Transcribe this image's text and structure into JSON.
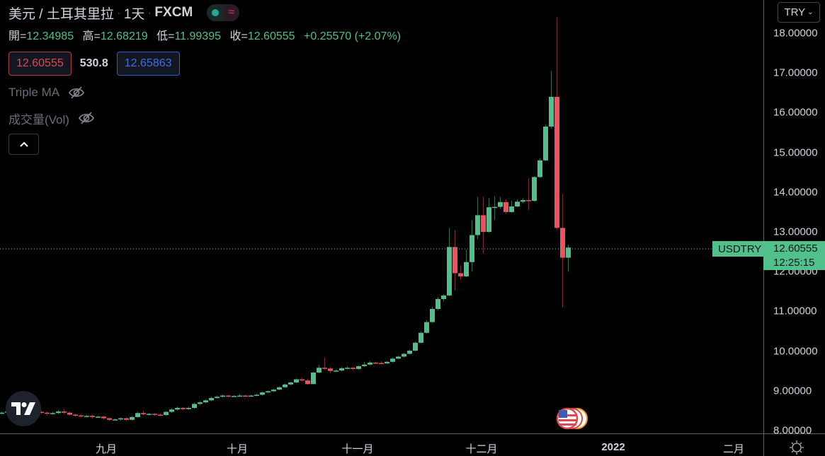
{
  "header": {
    "symbol_title": "美元 / 土耳其里拉",
    "interval": "1天",
    "exchange": "FXCM",
    "sep": "·",
    "status_icons": [
      "market-open-dot-icon",
      "delayed-data-icon"
    ]
  },
  "ohlc": {
    "open_label": "開=",
    "open": "12.34985",
    "high_label": "高=",
    "high": "12.68219",
    "low_label": "低=",
    "low": "11.99395",
    "close_label": "收=",
    "close": "12.60555",
    "change": "+0.25570 (+2.07%)"
  },
  "quote": {
    "sell": "12.60555",
    "spread": "530.8",
    "buy": "12.65863"
  },
  "indicators": [
    {
      "name": "Triple MA",
      "visibility_icon": "eye-off-icon"
    },
    {
      "name": "成交量(Vol)",
      "visibility_icon": "eye-off-icon"
    }
  ],
  "collapse_icon": "chevron-up-icon",
  "currency_button": "TRY",
  "price_axis": {
    "labels": [
      "18.00000",
      "17.00000",
      "16.00000",
      "15.00000",
      "14.00000",
      "13.00000",
      "12.00000",
      "11.00000",
      "10.00000",
      "9.00000",
      "8.00000"
    ]
  },
  "time_axis": {
    "labels": [
      "九月",
      "十月",
      "十一月",
      "十二月",
      "2022",
      "二月"
    ]
  },
  "last_price": {
    "symbol": "USDTRY",
    "price": "12.60555",
    "countdown": "12:25:15"
  },
  "colors": {
    "up": "#52c08b",
    "down": "#f0515f",
    "background": "#000000",
    "grid_line": "#363a45"
  },
  "chart_data": {
    "type": "candlestick",
    "ylim": [
      8,
      18
    ],
    "ohlc": [
      [
        8.44,
        8.48,
        8.41,
        8.45
      ],
      [
        8.45,
        8.51,
        8.42,
        8.48
      ],
      [
        8.48,
        8.53,
        8.45,
        8.5
      ],
      [
        8.5,
        8.53,
        8.44,
        8.47
      ],
      [
        8.47,
        8.49,
        8.43,
        8.46
      ],
      [
        8.46,
        8.51,
        8.43,
        8.48
      ],
      [
        8.48,
        8.5,
        8.44,
        8.47
      ],
      [
        8.47,
        8.5,
        8.42,
        8.45
      ],
      [
        8.45,
        8.48,
        8.38,
        8.43
      ],
      [
        8.43,
        8.47,
        8.4,
        8.44
      ],
      [
        8.44,
        8.52,
        8.41,
        8.48
      ],
      [
        8.48,
        8.54,
        8.42,
        8.45
      ],
      [
        8.45,
        8.48,
        8.37,
        8.4
      ],
      [
        8.4,
        8.43,
        8.35,
        8.38
      ],
      [
        8.38,
        8.41,
        8.33,
        8.36
      ],
      [
        8.36,
        8.39,
        8.33,
        8.37
      ],
      [
        8.37,
        8.4,
        8.31,
        8.34
      ],
      [
        8.34,
        8.38,
        8.32,
        8.35
      ],
      [
        8.35,
        8.37,
        8.28,
        8.31
      ],
      [
        8.31,
        8.33,
        8.24,
        8.27
      ],
      [
        8.27,
        8.3,
        8.25,
        8.28
      ],
      [
        8.28,
        8.33,
        8.25,
        8.31
      ],
      [
        8.31,
        8.33,
        8.25,
        8.27
      ],
      [
        8.27,
        8.37,
        8.25,
        8.34
      ],
      [
        8.34,
        8.47,
        8.32,
        8.44
      ],
      [
        8.44,
        8.5,
        8.38,
        8.41
      ],
      [
        8.41,
        8.45,
        8.38,
        8.42
      ],
      [
        8.42,
        8.44,
        8.37,
        8.4
      ],
      [
        8.4,
        8.43,
        8.36,
        8.39
      ],
      [
        8.39,
        8.49,
        8.37,
        8.47
      ],
      [
        8.47,
        8.56,
        8.45,
        8.53
      ],
      [
        8.53,
        8.6,
        8.5,
        8.57
      ],
      [
        8.57,
        8.59,
        8.51,
        8.54
      ],
      [
        8.54,
        8.6,
        8.52,
        8.57
      ],
      [
        8.57,
        8.7,
        8.55,
        8.67
      ],
      [
        8.67,
        8.74,
        8.64,
        8.71
      ],
      [
        8.71,
        8.79,
        8.69,
        8.76
      ],
      [
        8.76,
        8.85,
        8.74,
        8.82
      ],
      [
        8.82,
        8.88,
        8.8,
        8.85
      ],
      [
        8.85,
        8.91,
        8.83,
        8.88
      ],
      [
        8.88,
        8.9,
        8.83,
        8.86
      ],
      [
        8.86,
        8.89,
        8.84,
        8.87
      ],
      [
        8.87,
        8.92,
        8.85,
        8.88
      ],
      [
        8.88,
        8.9,
        8.85,
        8.87
      ],
      [
        8.87,
        8.9,
        8.85,
        8.88
      ],
      [
        8.88,
        8.93,
        8.86,
        8.9
      ],
      [
        8.9,
        8.98,
        8.88,
        8.96
      ],
      [
        8.96,
        9.01,
        8.94,
        8.99
      ],
      [
        8.99,
        9.05,
        8.97,
        9.03
      ],
      [
        9.03,
        9.11,
        9.01,
        9.09
      ],
      [
        9.09,
        9.18,
        9.07,
        9.16
      ],
      [
        9.16,
        9.23,
        9.14,
        9.21
      ],
      [
        9.21,
        9.31,
        9.19,
        9.29
      ],
      [
        9.29,
        9.33,
        9.23,
        9.26
      ],
      [
        9.26,
        9.3,
        9.15,
        9.17
      ],
      [
        9.17,
        9.48,
        9.16,
        9.46
      ],
      [
        9.46,
        9.65,
        9.44,
        9.58
      ],
      [
        9.58,
        9.83,
        9.53,
        9.56
      ],
      [
        9.56,
        9.6,
        9.44,
        9.5
      ],
      [
        9.5,
        9.54,
        9.47,
        9.51
      ],
      [
        9.51,
        9.6,
        9.49,
        9.57
      ],
      [
        9.57,
        9.62,
        9.54,
        9.58
      ],
      [
        9.58,
        9.6,
        9.52,
        9.55
      ],
      [
        9.55,
        9.64,
        9.53,
        9.62
      ],
      [
        9.62,
        9.73,
        9.6,
        9.66
      ],
      [
        9.66,
        9.75,
        9.64,
        9.71
      ],
      [
        9.71,
        9.74,
        9.68,
        9.7
      ],
      [
        9.7,
        9.74,
        9.67,
        9.69
      ],
      [
        9.69,
        9.75,
        9.67,
        9.73
      ],
      [
        9.73,
        9.84,
        9.71,
        9.81
      ],
      [
        9.81,
        9.88,
        9.79,
        9.86
      ],
      [
        9.86,
        9.96,
        9.84,
        9.93
      ],
      [
        9.93,
        10.04,
        9.91,
        10.01
      ],
      [
        10.01,
        10.24,
        9.99,
        10.21
      ],
      [
        10.21,
        10.5,
        10.19,
        10.46
      ],
      [
        10.46,
        10.78,
        10.44,
        10.73
      ],
      [
        10.73,
        11.12,
        10.71,
        11.06
      ],
      [
        11.06,
        11.36,
        11.03,
        11.31
      ],
      [
        11.31,
        11.44,
        11.25,
        11.4
      ],
      [
        11.4,
        13.1,
        11.38,
        12.62
      ],
      [
        12.62,
        13.05,
        11.52,
        11.96
      ],
      [
        11.96,
        12.15,
        11.8,
        11.88
      ],
      [
        11.88,
        12.55,
        11.86,
        12.24
      ],
      [
        12.24,
        13.3,
        12.0,
        12.92
      ],
      [
        12.92,
        13.88,
        12.82,
        13.42
      ],
      [
        13.42,
        13.88,
        12.45,
        13.0
      ],
      [
        13.0,
        13.85,
        12.98,
        13.62
      ],
      [
        13.62,
        13.9,
        13.3,
        13.63
      ],
      [
        13.63,
        13.88,
        13.58,
        13.75
      ],
      [
        13.75,
        13.82,
        13.45,
        13.5
      ],
      [
        13.5,
        13.78,
        13.48,
        13.64
      ],
      [
        13.64,
        13.82,
        13.62,
        13.76
      ],
      [
        13.76,
        13.85,
        13.72,
        13.8
      ],
      [
        13.8,
        14.35,
        13.55,
        13.78
      ],
      [
        13.78,
        14.4,
        13.76,
        14.38
      ],
      [
        14.38,
        14.85,
        14.36,
        14.8
      ],
      [
        14.8,
        15.7,
        14.78,
        15.65
      ],
      [
        15.65,
        17.05,
        15.6,
        16.4
      ],
      [
        16.4,
        18.4,
        13.05,
        13.1
      ],
      [
        13.1,
        13.95,
        11.1,
        12.35
      ],
      [
        12.34985,
        12.68219,
        11.99395,
        12.60555
      ]
    ]
  }
}
